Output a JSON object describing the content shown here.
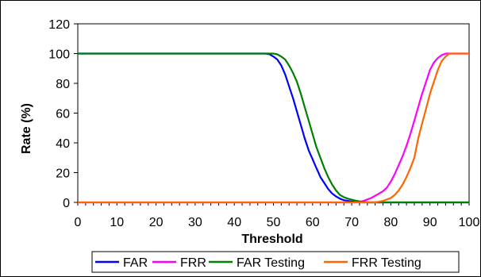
{
  "chart_data": {
    "type": "line",
    "title": "",
    "xlabel": "Threshold",
    "ylabel": "Rate (%)",
    "xlim": [
      0,
      100
    ],
    "ylim": [
      0,
      120
    ],
    "x_ticks": [
      0,
      10,
      20,
      30,
      40,
      50,
      60,
      70,
      80,
      90,
      100
    ],
    "y_ticks": [
      0,
      20,
      40,
      60,
      80,
      100,
      120
    ],
    "grid": false,
    "legend_position": "bottom",
    "series": [
      {
        "name": "FAR",
        "color": "#0000ff",
        "points": [
          [
            0,
            100
          ],
          [
            48,
            100
          ],
          [
            49,
            99.5
          ],
          [
            50,
            98
          ],
          [
            51,
            96
          ],
          [
            52,
            92
          ],
          [
            53,
            86
          ],
          [
            54,
            78
          ],
          [
            55,
            70
          ],
          [
            56,
            61
          ],
          [
            57,
            52
          ],
          [
            58,
            43
          ],
          [
            59,
            35
          ],
          [
            60,
            29
          ],
          [
            61,
            23
          ],
          [
            62,
            17
          ],
          [
            63,
            13
          ],
          [
            64,
            9
          ],
          [
            65,
            6
          ],
          [
            66,
            4
          ],
          [
            67,
            2.5
          ],
          [
            68,
            1.5
          ],
          [
            69,
            1
          ],
          [
            70,
            0.6
          ],
          [
            71,
            0.3
          ],
          [
            72,
            0
          ],
          [
            100,
            0
          ]
        ]
      },
      {
        "name": "FRR",
        "color": "#ff00ff",
        "points": [
          [
            0,
            0
          ],
          [
            71,
            0
          ],
          [
            72,
            0.3
          ],
          [
            73,
            1
          ],
          [
            74,
            2
          ],
          [
            75,
            3
          ],
          [
            76,
            4.5
          ],
          [
            77,
            6
          ],
          [
            78,
            7.5
          ],
          [
            79,
            10
          ],
          [
            80,
            14
          ],
          [
            81,
            19
          ],
          [
            82,
            25
          ],
          [
            83,
            31
          ],
          [
            84,
            38
          ],
          [
            85,
            46
          ],
          [
            86,
            55
          ],
          [
            87,
            64
          ],
          [
            88,
            73
          ],
          [
            89,
            81
          ],
          [
            90,
            89
          ],
          [
            91,
            94
          ],
          [
            92,
            97
          ],
          [
            93,
            99
          ],
          [
            94,
            100
          ],
          [
            100,
            100
          ]
        ]
      },
      {
        "name": "FAR Testing",
        "color": "#008000",
        "points": [
          [
            0,
            100
          ],
          [
            50,
            100
          ],
          [
            51,
            99.5
          ],
          [
            52,
            98
          ],
          [
            53,
            96
          ],
          [
            54,
            92
          ],
          [
            55,
            87
          ],
          [
            56,
            81
          ],
          [
            57,
            73
          ],
          [
            58,
            64
          ],
          [
            59,
            55
          ],
          [
            60,
            46
          ],
          [
            61,
            37
          ],
          [
            62,
            30
          ],
          [
            63,
            23
          ],
          [
            64,
            17
          ],
          [
            65,
            12
          ],
          [
            66,
            8
          ],
          [
            67,
            5
          ],
          [
            68,
            3.5
          ],
          [
            69,
            2.5
          ],
          [
            70,
            1.8
          ],
          [
            71,
            1.2
          ],
          [
            72,
            0.7
          ],
          [
            73,
            0.3
          ],
          [
            74,
            0
          ],
          [
            100,
            0
          ]
        ]
      },
      {
        "name": "FRR Testing",
        "color": "#ff6600",
        "points": [
          [
            0,
            0
          ],
          [
            76,
            0
          ],
          [
            77,
            0.5
          ],
          [
            78,
            1
          ],
          [
            79,
            2
          ],
          [
            80,
            3
          ],
          [
            81,
            5
          ],
          [
            82,
            8
          ],
          [
            83,
            12
          ],
          [
            84,
            17
          ],
          [
            85,
            23
          ],
          [
            86,
            30
          ],
          [
            87,
            43
          ],
          [
            88,
            53
          ],
          [
            89,
            63
          ],
          [
            90,
            73
          ],
          [
            91,
            81
          ],
          [
            92,
            89
          ],
          [
            93,
            95
          ],
          [
            94,
            98
          ],
          [
            95,
            100
          ],
          [
            100,
            100
          ]
        ]
      }
    ]
  }
}
